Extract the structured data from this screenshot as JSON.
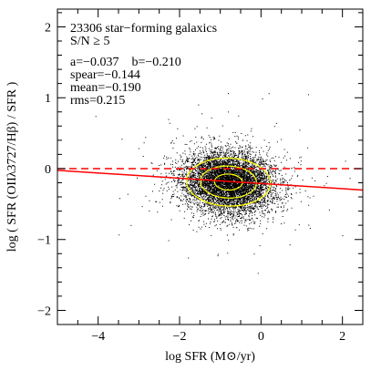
{
  "chart_data": {
    "type": "scatter",
    "title": "",
    "xlabel": "log SFR (M⊙/yr)",
    "ylabel": "log ( SFR (OIIλ3727/Hβ) / SFR )",
    "xlim": [
      -5,
      2.5
    ],
    "ylim": [
      -2.2,
      2.25
    ],
    "xticks": [
      -4,
      -2,
      0,
      2
    ],
    "yticks": [
      -2,
      -1,
      0,
      1,
      2
    ],
    "xtick_labels": [
      "−4",
      "−2",
      "0",
      "2"
    ],
    "ytick_labels": [
      "−2",
      "−1",
      "0",
      "1",
      "2"
    ],
    "grid": false,
    "annotations": [
      "23306 star−forming galaxics",
      "S/N ≥ 5",
      "a=−0.037    b=−0.210",
      "spear=−0.144",
      "mean=−0.190",
      "rms=0.215"
    ],
    "cloud": {
      "n_points": 23306,
      "center_x": -0.8,
      "center_y": -0.19,
      "sigma_x": 0.55,
      "sigma_y": 0.215,
      "color": "#000000"
    },
    "contours": {
      "color": "#ffff00",
      "levels_sigma": [
        0.5,
        1.0,
        1.5
      ]
    },
    "lines": [
      {
        "name": "zero",
        "style": "dashed",
        "color": "#ff0000",
        "slope": 0,
        "intercept": 0
      },
      {
        "name": "fit",
        "style": "solid",
        "color": "#ff0000",
        "slope": -0.037,
        "intercept": -0.21
      }
    ]
  }
}
